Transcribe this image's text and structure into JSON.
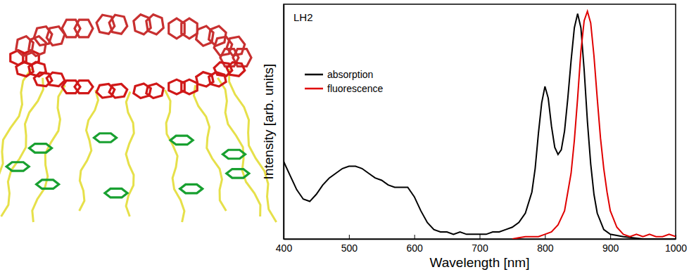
{
  "chart_data": {
    "type": "line",
    "annotations": [
      "LH2"
    ],
    "x_label": "Wavelength [nm]",
    "y_label": "Intensity [arb. units]",
    "xlim": [
      400,
      1000
    ],
    "xticks": [
      400,
      500,
      600,
      700,
      800,
      900,
      1000
    ],
    "ylim": [
      0,
      1
    ],
    "tick_labels": "x",
    "legend": "upper left",
    "series": [
      {
        "name": "absorption",
        "color": "#000000",
        "x": [
          400,
          410,
          420,
          430,
          440,
          450,
          460,
          470,
          480,
          490,
          500,
          510,
          520,
          530,
          540,
          550,
          560,
          570,
          580,
          590,
          600,
          610,
          620,
          630,
          640,
          650,
          660,
          670,
          680,
          690,
          700,
          710,
          720,
          730,
          740,
          750,
          760,
          770,
          780,
          785,
          790,
          795,
          800,
          805,
          810,
          815,
          820,
          825,
          830,
          835,
          840,
          845,
          850,
          855,
          860,
          865,
          870,
          875,
          880,
          890,
          900,
          920,
          950,
          1000
        ],
        "values": [
          0.33,
          0.27,
          0.21,
          0.17,
          0.16,
          0.19,
          0.23,
          0.26,
          0.28,
          0.3,
          0.31,
          0.31,
          0.3,
          0.28,
          0.26,
          0.25,
          0.23,
          0.22,
          0.22,
          0.22,
          0.18,
          0.12,
          0.07,
          0.04,
          0.03,
          0.03,
          0.02,
          0.03,
          0.02,
          0.02,
          0.02,
          0.02,
          0.03,
          0.03,
          0.04,
          0.05,
          0.07,
          0.11,
          0.2,
          0.3,
          0.45,
          0.58,
          0.65,
          0.6,
          0.48,
          0.39,
          0.36,
          0.38,
          0.46,
          0.6,
          0.76,
          0.9,
          0.96,
          0.9,
          0.72,
          0.5,
          0.32,
          0.19,
          0.11,
          0.04,
          0.02,
          0.01,
          0.0,
          0.0
        ]
      },
      {
        "name": "fluorescence",
        "color": "#e00000",
        "x": [
          750,
          760,
          770,
          780,
          790,
          800,
          810,
          820,
          830,
          840,
          845,
          850,
          855,
          860,
          865,
          870,
          875,
          880,
          885,
          890,
          895,
          900,
          910,
          920,
          930,
          940,
          950,
          960,
          970,
          980,
          990,
          1000
        ],
        "values": [
          0.0,
          0.005,
          0.01,
          0.01,
          0.01,
          0.02,
          0.03,
          0.06,
          0.12,
          0.28,
          0.42,
          0.6,
          0.8,
          0.93,
          0.97,
          0.92,
          0.78,
          0.6,
          0.43,
          0.3,
          0.2,
          0.12,
          0.05,
          0.02,
          0.01,
          0.02,
          0.01,
          0.02,
          0.01,
          0.01,
          0.02,
          0.01
        ]
      }
    ]
  }
}
